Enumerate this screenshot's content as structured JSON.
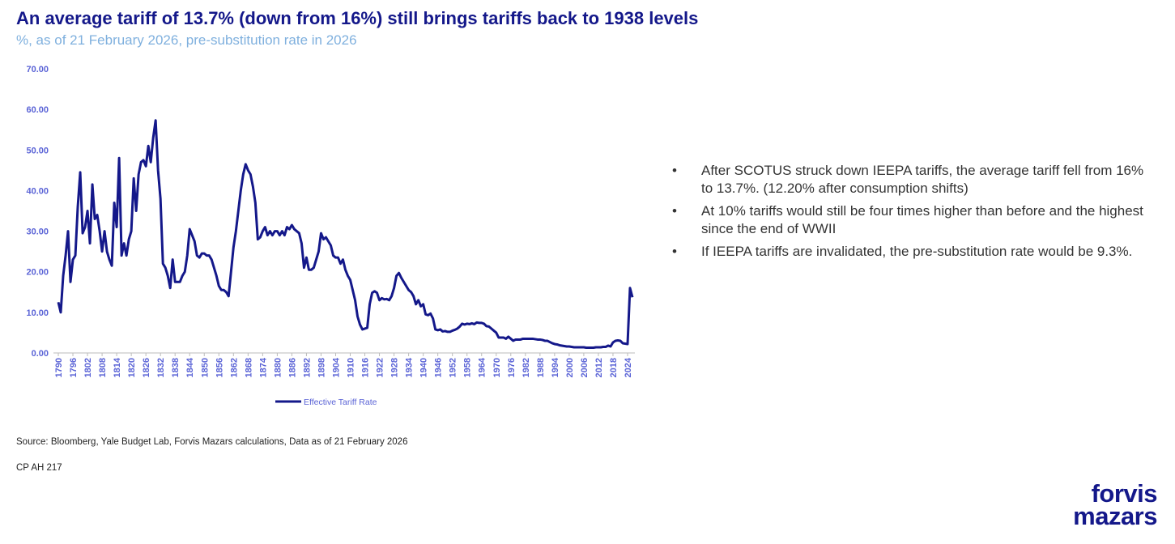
{
  "title": "An average tariff of 13.7% (down from 16%) still brings tariffs back to 1938 levels",
  "subtitle": "%, as of 21 February 2026, pre-substitution rate in 2026",
  "bullets": [
    "After SCOTUS struck down IEEPA tariffs, the average tariff fell from 16% to 13.7%. (12.20% after consumption shifts)",
    "At 10% tariffs would still be four times higher than before and the highest since the end of WWII",
    "If IEEPA tariffs are invalidated, the pre-substitution rate would be 9.3%."
  ],
  "source": "Source: Bloomberg, Yale Budget Lab, Forvis Mazars calculations, Data as of 21 February 2026",
  "code": "CP AH 217",
  "logo": [
    "forvis",
    "mazars"
  ],
  "chart_data": {
    "type": "line",
    "x": [
      1790,
      1791,
      1792,
      1793,
      1794,
      1795,
      1796,
      1797,
      1798,
      1799,
      1800,
      1801,
      1802,
      1803,
      1804,
      1805,
      1806,
      1807,
      1808,
      1809,
      1810,
      1811,
      1812,
      1813,
      1814,
      1815,
      1816,
      1817,
      1818,
      1819,
      1820,
      1821,
      1822,
      1823,
      1824,
      1825,
      1826,
      1827,
      1828,
      1829,
      1830,
      1831,
      1832,
      1833,
      1834,
      1835,
      1836,
      1837,
      1838,
      1839,
      1840,
      1841,
      1842,
      1843,
      1844,
      1845,
      1846,
      1847,
      1848,
      1849,
      1850,
      1851,
      1852,
      1853,
      1854,
      1855,
      1856,
      1857,
      1858,
      1859,
      1860,
      1861,
      1862,
      1863,
      1864,
      1865,
      1866,
      1867,
      1868,
      1869,
      1870,
      1871,
      1872,
      1873,
      1874,
      1875,
      1876,
      1877,
      1878,
      1879,
      1880,
      1881,
      1882,
      1883,
      1884,
      1885,
      1886,
      1887,
      1888,
      1889,
      1890,
      1891,
      1892,
      1893,
      1894,
      1895,
      1896,
      1897,
      1898,
      1899,
      1900,
      1901,
      1902,
      1903,
      1904,
      1905,
      1906,
      1907,
      1908,
      1909,
      1910,
      1911,
      1912,
      1913,
      1914,
      1915,
      1916,
      1917,
      1918,
      1919,
      1920,
      1921,
      1922,
      1923,
      1924,
      1925,
      1926,
      1927,
      1928,
      1929,
      1930,
      1931,
      1932,
      1933,
      1934,
      1935,
      1936,
      1937,
      1938,
      1939,
      1940,
      1941,
      1942,
      1943,
      1944,
      1945,
      1946,
      1947,
      1948,
      1949,
      1950,
      1951,
      1952,
      1953,
      1954,
      1955,
      1956,
      1957,
      1958,
      1959,
      1960,
      1961,
      1962,
      1963,
      1964,
      1965,
      1966,
      1967,
      1968,
      1969,
      1970,
      1971,
      1972,
      1973,
      1974,
      1975,
      1976,
      1977,
      1978,
      1979,
      1980,
      1981,
      1982,
      1983,
      1984,
      1985,
      1986,
      1987,
      1988,
      1989,
      1990,
      1991,
      1992,
      1993,
      1994,
      1995,
      1996,
      1997,
      1998,
      1999,
      2000,
      2001,
      2002,
      2003,
      2004,
      2005,
      2006,
      2007,
      2008,
      2009,
      2010,
      2011,
      2012,
      2013,
      2014,
      2015,
      2016,
      2017,
      2018,
      2019,
      2020,
      2021,
      2022,
      2023,
      2024,
      2025,
      2026
    ],
    "series": [
      {
        "name": "Effective Tariff Rate",
        "color": "#14188a",
        "values": [
          12.5,
          10,
          19,
          24,
          30,
          17.5,
          23,
          24,
          36,
          44.5,
          29.5,
          31,
          35,
          27,
          41.5,
          33,
          34,
          30,
          25,
          30,
          25,
          23,
          21.5,
          37,
          31,
          48,
          24,
          27,
          24,
          28,
          30,
          43,
          35,
          44,
          47,
          47.5,
          46,
          51,
          47,
          53,
          57.3,
          45,
          38,
          22,
          21,
          19,
          16,
          23,
          17.5,
          17.5,
          17.5,
          19,
          20,
          24,
          30.5,
          29,
          27.5,
          24,
          23.5,
          24.5,
          24.5,
          24,
          24,
          23,
          21,
          19,
          16.5,
          15.5,
          15.5,
          15,
          14,
          20,
          26,
          30,
          35,
          40,
          44,
          46.5,
          45,
          44,
          41,
          37,
          28,
          28.5,
          30,
          31,
          29,
          30,
          29,
          30,
          30,
          29,
          30,
          29,
          31,
          30.5,
          31.5,
          30.5,
          30,
          29.5,
          27,
          21,
          23.5,
          20.5,
          20.5,
          21,
          23,
          25,
          29.5,
          28,
          28.5,
          27.5,
          26.5,
          24,
          23.5,
          23.5,
          22,
          23,
          20.5,
          19,
          18,
          15.5,
          13,
          9,
          7,
          5.8,
          6,
          6.2,
          12,
          14.8,
          15.2,
          14.8,
          13,
          13.5,
          13.2,
          13.3,
          13,
          14,
          16,
          19,
          19.7,
          18.5,
          17.5,
          16.5,
          15.5,
          15,
          14,
          12,
          13,
          11.5,
          12,
          9.5,
          9.3,
          9.7,
          8.5,
          5.8,
          5.6,
          5.8,
          5.3,
          5.4,
          5.2,
          5.2,
          5.5,
          5.7,
          6,
          6.5,
          7.2,
          7,
          7.2,
          7.1,
          7.3,
          7.1,
          7.5,
          7.4,
          7.4,
          7.2,
          6.6,
          6.5,
          6,
          5.5,
          5,
          3.8,
          3.8,
          3.8,
          3.5,
          4,
          3.5,
          3,
          3.3,
          3.3,
          3.3,
          3.5,
          3.5,
          3.5,
          3.5,
          3.5,
          3.4,
          3.3,
          3.3,
          3.2,
          3,
          3,
          2.7,
          2.4,
          2.2,
          2.1,
          1.9,
          1.8,
          1.7,
          1.6,
          1.6,
          1.5,
          1.4,
          1.4,
          1.4,
          1.4,
          1.4,
          1.3,
          1.3,
          1.3,
          1.3,
          1.4,
          1.4,
          1.4,
          1.5,
          1.5,
          1.8,
          1.6,
          2.6,
          3,
          3.1,
          3,
          2.4,
          2.3,
          2.2,
          16,
          13.7
        ]
      }
    ],
    "xlim": [
      1788,
      2027
    ],
    "xticks": [
      1790,
      1796,
      1802,
      1808,
      1814,
      1820,
      1826,
      1832,
      1838,
      1844,
      1850,
      1856,
      1862,
      1868,
      1874,
      1880,
      1886,
      1892,
      1898,
      1904,
      1910,
      1916,
      1922,
      1928,
      1934,
      1940,
      1946,
      1952,
      1958,
      1964,
      1970,
      1976,
      1982,
      1988,
      1994,
      2000,
      2006,
      2012,
      2018,
      2024
    ],
    "ylim": [
      0,
      70
    ],
    "yticks": [
      {
        "value": 0,
        "label": "0.00"
      },
      {
        "value": 10,
        "label": "10.00"
      },
      {
        "value": 20,
        "label": "20.00"
      },
      {
        "value": 30,
        "label": "30.00"
      },
      {
        "value": 40,
        "label": "40.00"
      },
      {
        "value": 50,
        "label": "50.00"
      },
      {
        "value": 60,
        "label": "60.00"
      },
      {
        "value": 70,
        "label": "70.00"
      }
    ],
    "grid": false,
    "legend": "bottom"
  }
}
